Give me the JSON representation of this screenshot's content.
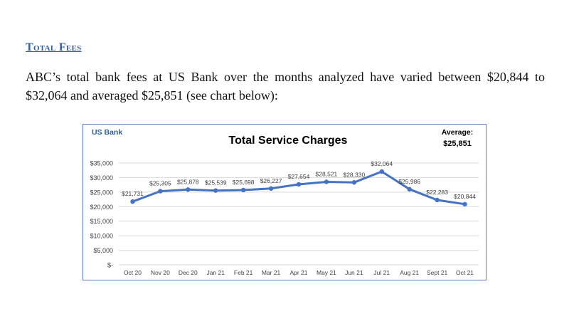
{
  "section": {
    "title": "Total Fees",
    "paragraph": "ABC’s total bank fees at US Bank over the months analyzed have varied between $20,844 to $32,064 and averaged $25,851 (see chart below):"
  },
  "chart_data": {
    "type": "line",
    "title": "Total Service Charges",
    "corner_label": "US Bank",
    "average_label": "Average:",
    "average_value": "$25,851",
    "categories": [
      "Oct 20",
      "Nov 20",
      "Dec 20",
      "Jan 21",
      "Feb 21",
      "Mar 21",
      "Apr 21",
      "May 21",
      "Jun 21",
      "Jul 21",
      "Aug 21",
      "Sept 21",
      "Oct 21"
    ],
    "series": [
      {
        "values": [
          21731,
          25305,
          25878,
          25539,
          25698,
          26227,
          27654,
          28521,
          28330,
          32064,
          25986,
          22283,
          20844
        ],
        "labels": [
          "$21,731",
          "$25,305",
          "$25,878",
          "$25,539",
          "$25,698",
          "$26,227",
          "$27,654",
          "$28,521",
          "$28,330",
          "$32,064",
          "$25,986",
          "$22,283",
          "$20,844"
        ]
      }
    ],
    "yticks": [
      0,
      5000,
      10000,
      15000,
      20000,
      25000,
      30000,
      35000
    ],
    "ytick_labels": [
      "$-",
      "$5,000",
      "$10,000",
      "$15,000",
      "$20,000",
      "$25,000",
      "$30,000",
      "$35,000"
    ],
    "ylim": [
      0,
      35000
    ],
    "grid": true,
    "line_color": "#4472c4",
    "grid_color": "#d9d9d9"
  }
}
